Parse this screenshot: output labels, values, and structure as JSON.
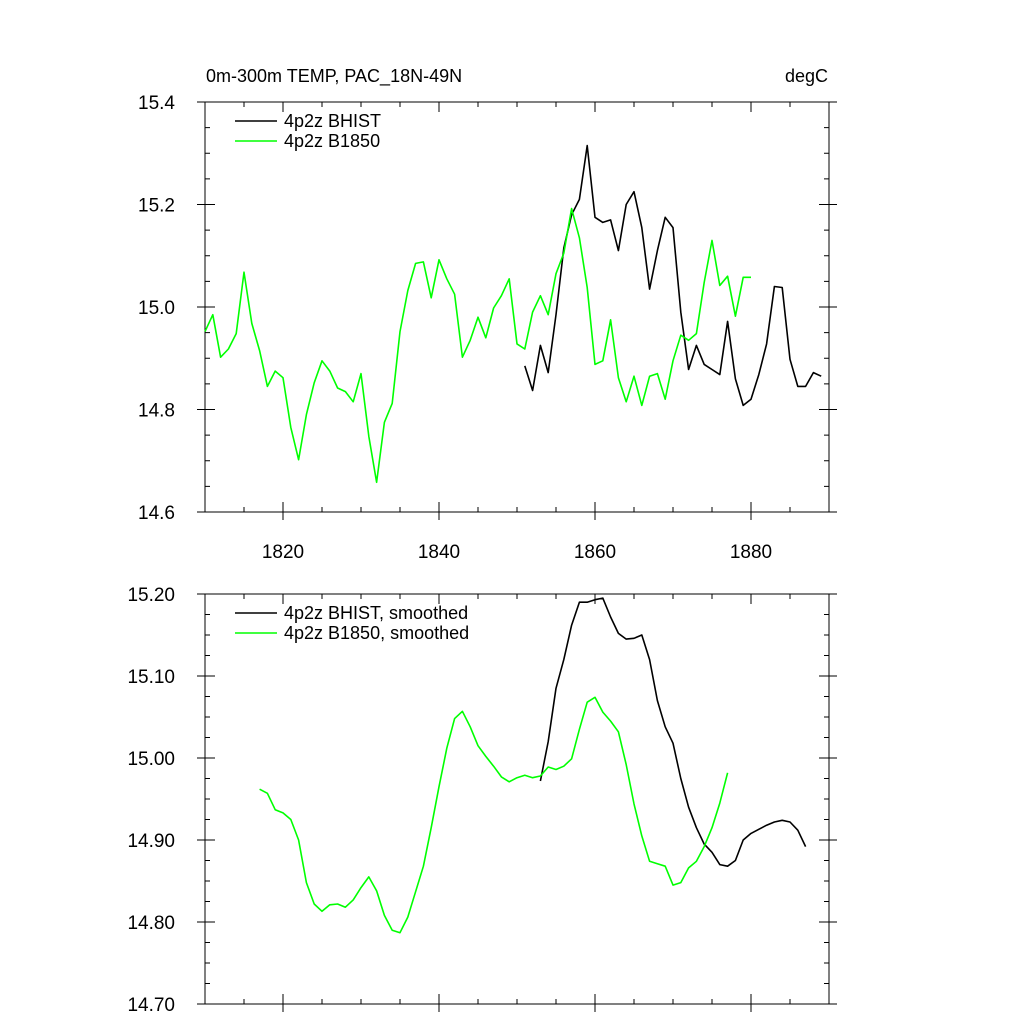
{
  "header": {
    "left_title": "0m-300m TEMP, PAC_18N-49N",
    "right_title": "degC"
  },
  "chart_data": [
    {
      "type": "line",
      "title": "0m-300m TEMP, PAC_18N-49N",
      "units": "degC",
      "xlim": [
        1810,
        1890
      ],
      "ylim": [
        14.6,
        15.4
      ],
      "x_ticks": [
        1820,
        1840,
        1860,
        1880
      ],
      "x_tick_labels": [
        "1820",
        "1840",
        "1860",
        "1880"
      ],
      "y_ticks": [
        14.6,
        14.8,
        15.0,
        15.2,
        15.4
      ],
      "y_tick_labels": [
        "14.6",
        "14.8",
        "15.0",
        "15.2",
        "15.4"
      ],
      "legend_position": "top-left",
      "series": [
        {
          "name": "4p2z BHIST",
          "color": "#000000",
          "x": [
            1851,
            1852,
            1853,
            1854,
            1855,
            1856,
            1857,
            1858,
            1859,
            1860,
            1861,
            1862,
            1863,
            1864,
            1865,
            1866,
            1867,
            1868,
            1869,
            1870,
            1871,
            1872,
            1873,
            1874,
            1875,
            1876,
            1877,
            1878,
            1879,
            1880,
            1881,
            1882,
            1883,
            1884,
            1885,
            1886,
            1887,
            1888,
            1889
          ],
          "values": [
            14.885,
            14.837,
            14.925,
            14.872,
            14.985,
            15.115,
            15.18,
            15.21,
            15.315,
            15.175,
            15.165,
            15.17,
            15.11,
            15.2,
            15.225,
            15.155,
            15.035,
            15.11,
            15.175,
            15.155,
            14.99,
            14.878,
            14.925,
            14.888,
            14.878,
            14.868,
            14.972,
            14.86,
            14.808,
            14.82,
            14.868,
            14.928,
            15.04,
            15.038,
            14.898,
            14.845,
            14.845,
            14.872,
            14.865
          ]
        },
        {
          "name": "4p2z B1850",
          "color": "#00ff00",
          "x": [
            1810,
            1811,
            1812,
            1813,
            1814,
            1815,
            1816,
            1817,
            1818,
            1819,
            1820,
            1821,
            1822,
            1823,
            1824,
            1825,
            1826,
            1827,
            1828,
            1829,
            1830,
            1831,
            1832,
            1833,
            1834,
            1835,
            1836,
            1837,
            1838,
            1839,
            1840,
            1841,
            1842,
            1843,
            1844,
            1845,
            1846,
            1847,
            1848,
            1849,
            1850,
            1851,
            1852,
            1853,
            1854,
            1855,
            1856,
            1857,
            1858,
            1859,
            1860,
            1861,
            1862,
            1863,
            1864,
            1865,
            1866,
            1867,
            1868,
            1869,
            1870,
            1871,
            1872,
            1873,
            1874,
            1875,
            1876,
            1877,
            1878,
            1879,
            1880
          ],
          "values": [
            14.952,
            14.985,
            14.902,
            14.918,
            14.948,
            15.068,
            14.968,
            14.915,
            14.845,
            14.875,
            14.862,
            14.765,
            14.702,
            14.79,
            14.852,
            14.895,
            14.875,
            14.842,
            14.835,
            14.815,
            14.87,
            14.748,
            14.658,
            14.775,
            14.812,
            14.952,
            15.032,
            15.085,
            15.088,
            15.018,
            15.092,
            15.055,
            15.025,
            14.902,
            14.935,
            14.98,
            14.94,
            14.998,
            15.022,
            15.055,
            14.928,
            14.918,
            14.99,
            15.022,
            14.985,
            15.065,
            15.105,
            15.192,
            15.135,
            15.038,
            14.888,
            14.895,
            14.975,
            14.862,
            14.815,
            14.865,
            14.808,
            14.865,
            14.87,
            14.82,
            14.895,
            14.945,
            14.935,
            14.948,
            15.048,
            15.13,
            15.042,
            15.06,
            14.982,
            15.058,
            15.058
          ]
        }
      ]
    },
    {
      "type": "line",
      "title": "",
      "xlim": [
        1810,
        1890
      ],
      "ylim": [
        14.7,
        15.2
      ],
      "x_ticks": [
        1820,
        1840,
        1860,
        1880
      ],
      "y_ticks": [
        14.7,
        14.8,
        14.9,
        15.0,
        15.1,
        15.2
      ],
      "y_tick_labels": [
        "14.70",
        "14.80",
        "14.90",
        "15.00",
        "15.10",
        "15.20"
      ],
      "legend_position": "top-left",
      "series": [
        {
          "name": "4p2z BHIST, smoothed",
          "color": "#000000",
          "x": [
            1853,
            1854,
            1855,
            1856,
            1857,
            1858,
            1859,
            1860,
            1861,
            1862,
            1863,
            1864,
            1865,
            1866,
            1867,
            1868,
            1869,
            1870,
            1871,
            1872,
            1873,
            1874,
            1875,
            1876,
            1877,
            1878,
            1879,
            1880,
            1881,
            1882,
            1883,
            1884,
            1885,
            1886,
            1887
          ],
          "values": [
            14.972,
            15.02,
            15.085,
            15.12,
            15.162,
            15.19,
            15.19,
            15.193,
            15.195,
            15.172,
            15.152,
            15.145,
            15.146,
            15.15,
            15.12,
            15.07,
            15.038,
            15.018,
            14.975,
            14.94,
            14.915,
            14.895,
            14.885,
            14.87,
            14.868,
            14.875,
            14.9,
            14.908,
            14.913,
            14.918,
            14.922,
            14.924,
            14.922,
            14.912,
            14.892
          ]
        },
        {
          "name": "4p2z B1850, smoothed",
          "color": "#00ff00",
          "x": [
            1817,
            1818,
            1819,
            1820,
            1821,
            1822,
            1823,
            1824,
            1825,
            1826,
            1827,
            1828,
            1829,
            1830,
            1831,
            1832,
            1833,
            1834,
            1835,
            1836,
            1837,
            1838,
            1839,
            1840,
            1841,
            1842,
            1843,
            1844,
            1845,
            1846,
            1847,
            1848,
            1849,
            1850,
            1851,
            1852,
            1853,
            1854,
            1855,
            1856,
            1857,
            1858,
            1859,
            1860,
            1861,
            1862,
            1863,
            1864,
            1865,
            1866,
            1867,
            1868,
            1869,
            1870,
            1871,
            1872,
            1873,
            1874,
            1875,
            1876,
            1877
          ],
          "values": [
            14.962,
            14.957,
            14.937,
            14.933,
            14.925,
            14.9,
            14.848,
            14.822,
            14.813,
            14.821,
            14.822,
            14.818,
            14.827,
            14.842,
            14.855,
            14.838,
            14.808,
            14.79,
            14.787,
            14.806,
            14.837,
            14.868,
            14.915,
            14.965,
            15.012,
            15.048,
            15.057,
            15.038,
            15.015,
            15.002,
            14.99,
            14.977,
            14.971,
            14.976,
            14.979,
            14.976,
            14.978,
            14.989,
            14.986,
            14.99,
            14.999,
            15.035,
            15.068,
            15.074,
            15.056,
            15.045,
            15.032,
            14.992,
            14.944,
            14.905,
            14.874,
            14.871,
            14.868,
            14.845,
            14.848,
            14.866,
            14.874,
            14.892,
            14.915,
            14.945,
            14.982
          ]
        }
      ]
    }
  ]
}
